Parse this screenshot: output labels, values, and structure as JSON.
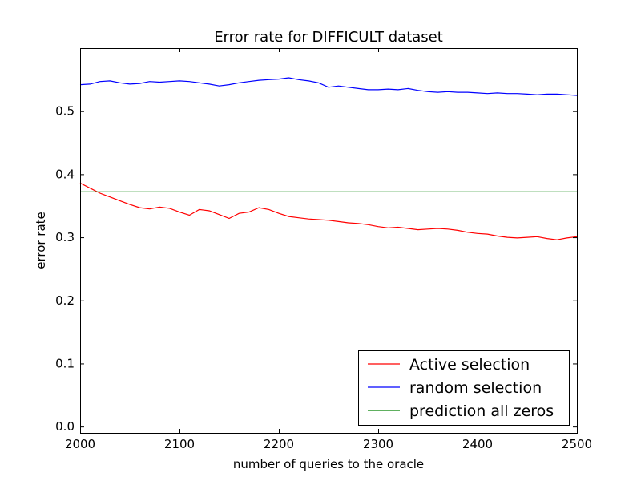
{
  "chart_data": {
    "type": "line",
    "title": "Error rate for DIFFICULT dataset",
    "xlabel": "number of queries to the oracle",
    "ylabel": "error rate",
    "xlim": [
      2000,
      2500
    ],
    "ylim": [
      -0.01,
      0.6
    ],
    "xticks": [
      2000,
      2100,
      2200,
      2300,
      2400,
      2500
    ],
    "yticks": [
      0.0,
      0.1,
      0.2,
      0.3,
      0.4,
      0.5
    ],
    "ytick_labels": [
      "0.0",
      "0.1",
      "0.2",
      "0.3",
      "0.4",
      "0.5"
    ],
    "grid": false,
    "legend_position": "bottom-right",
    "series": [
      {
        "name": "Active selection",
        "color": "#ff0000",
        "x": [
          2000,
          2010,
          2020,
          2030,
          2040,
          2050,
          2060,
          2070,
          2080,
          2090,
          2100,
          2110,
          2120,
          2130,
          2140,
          2150,
          2160,
          2170,
          2180,
          2190,
          2200,
          2210,
          2220,
          2230,
          2240,
          2250,
          2260,
          2270,
          2280,
          2290,
          2300,
          2310,
          2320,
          2330,
          2340,
          2350,
          2360,
          2370,
          2380,
          2390,
          2400,
          2410,
          2420,
          2430,
          2440,
          2450,
          2460,
          2470,
          2480,
          2490,
          2500
        ],
        "values": [
          0.386,
          0.378,
          0.37,
          0.364,
          0.358,
          0.352,
          0.347,
          0.345,
          0.348,
          0.346,
          0.34,
          0.335,
          0.344,
          0.342,
          0.336,
          0.33,
          0.338,
          0.34,
          0.347,
          0.344,
          0.338,
          0.333,
          0.331,
          0.329,
          0.328,
          0.327,
          0.325,
          0.323,
          0.322,
          0.32,
          0.317,
          0.315,
          0.316,
          0.314,
          0.312,
          0.313,
          0.314,
          0.313,
          0.311,
          0.308,
          0.306,
          0.305,
          0.302,
          0.3,
          0.299,
          0.3,
          0.301,
          0.298,
          0.296,
          0.299,
          0.301
        ]
      },
      {
        "name": "random selection",
        "color": "#0000ff",
        "x": [
          2000,
          2010,
          2020,
          2030,
          2040,
          2050,
          2060,
          2070,
          2080,
          2090,
          2100,
          2110,
          2120,
          2130,
          2140,
          2150,
          2160,
          2170,
          2180,
          2190,
          2200,
          2210,
          2220,
          2230,
          2240,
          2250,
          2260,
          2270,
          2280,
          2290,
          2300,
          2310,
          2320,
          2330,
          2340,
          2350,
          2360,
          2370,
          2380,
          2390,
          2400,
          2410,
          2420,
          2430,
          2440,
          2450,
          2460,
          2470,
          2480,
          2490,
          2500
        ],
        "values": [
          0.542,
          0.543,
          0.547,
          0.548,
          0.545,
          0.543,
          0.544,
          0.547,
          0.546,
          0.547,
          0.548,
          0.547,
          0.545,
          0.543,
          0.54,
          0.542,
          0.545,
          0.547,
          0.549,
          0.55,
          0.551,
          0.553,
          0.55,
          0.548,
          0.545,
          0.538,
          0.54,
          0.538,
          0.536,
          0.534,
          0.534,
          0.535,
          0.534,
          0.536,
          0.533,
          0.531,
          0.53,
          0.531,
          0.53,
          0.53,
          0.529,
          0.528,
          0.529,
          0.528,
          0.528,
          0.527,
          0.526,
          0.527,
          0.527,
          0.526,
          0.525
        ]
      },
      {
        "name": "prediction all zeros",
        "color": "#008000",
        "x": [
          2000,
          2500
        ],
        "values": [
          0.372,
          0.372
        ]
      }
    ]
  }
}
